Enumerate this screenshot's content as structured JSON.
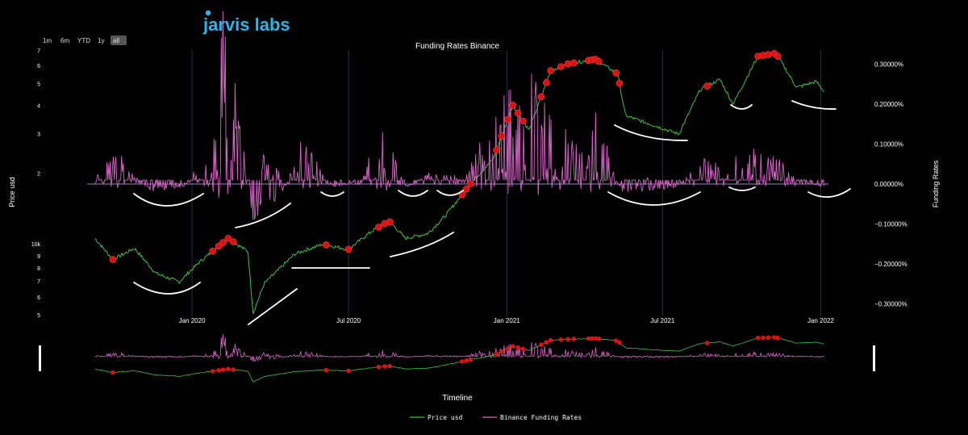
{
  "logo": {
    "text": "jarvis labs",
    "colors": [
      "#2bb5e8",
      "#7b4fd0"
    ]
  },
  "range_selector": {
    "buttons": [
      "1m",
      "6m",
      "YTD",
      "1y",
      "all"
    ],
    "active": "all"
  },
  "slider": {
    "title": "Timeline"
  },
  "colors": {
    "price": "#3ec43e",
    "funding": "#d864c8",
    "marker": "#dd1111",
    "annotation": "#ffffff",
    "grid": "#2e2e48",
    "zero_line": "#6f6f9a"
  },
  "chart_data": {
    "type": "line",
    "title": "Funding Rates Binance",
    "xlabel": "",
    "y_left_label": "Price usd",
    "y_right_label": "Funding Rates",
    "y_left_scale": "log",
    "y_left_ticks_upper": [
      "7",
      "6",
      "5",
      "4",
      "3",
      "2"
    ],
    "y_left_ticks_lower": [
      "10k",
      "9",
      "8",
      "7",
      "6",
      "5"
    ],
    "y_right_ticks": [
      "0.30000%",
      "0.20000%",
      "0.10000%",
      "0.00000%",
      "−0.10000%",
      "−0.20000%",
      "−0.30000%"
    ],
    "x_ticks": [
      "Jan 2020",
      "Jul 2020",
      "Jan 2021",
      "Jul 2021",
      "Jan 2022"
    ],
    "x_range": [
      "2019-09-01",
      "2022-01-10"
    ],
    "grid": true,
    "legend": {
      "position": "bottom-center",
      "entries": [
        "Price usd",
        "Binance Funding Rates"
      ]
    },
    "series": [
      {
        "name": "Price usd",
        "dates": [
          "2019-09-10",
          "2019-10-01",
          "2019-10-26",
          "2019-11-20",
          "2019-12-17",
          "2020-01-10",
          "2020-02-12",
          "2020-03-06",
          "2020-03-12",
          "2020-03-25",
          "2020-04-30",
          "2020-06-01",
          "2020-07-01",
          "2020-07-27",
          "2020-08-17",
          "2020-09-05",
          "2020-10-01",
          "2020-10-21",
          "2020-11-25",
          "2020-12-16",
          "2021-01-08",
          "2021-01-27",
          "2021-02-21",
          "2021-03-13",
          "2021-04-14",
          "2021-05-10",
          "2021-05-19",
          "2021-06-22",
          "2021-07-20",
          "2021-08-14",
          "2021-09-06",
          "2021-09-21",
          "2021-10-20",
          "2021-11-10",
          "2021-12-04",
          "2021-12-27",
          "2022-01-05"
        ],
        "values": [
          10300,
          8300,
          9300,
          7200,
          6600,
          8100,
          10300,
          9000,
          4800,
          6500,
          8800,
          9700,
          9200,
          11000,
          12300,
          10300,
          10800,
          12900,
          19000,
          23000,
          40000,
          31000,
          57000,
          61000,
          64000,
          55000,
          36000,
          32500,
          29800,
          47000,
          52000,
          40500,
          66000,
          68000,
          48000,
          51000,
          46000
        ]
      },
      {
        "name": "Binance Funding Rates",
        "dates": [
          "2019-09-10",
          "2019-10-05",
          "2019-11-15",
          "2019-12-20",
          "2020-01-20",
          "2020-02-10",
          "2020-03-01",
          "2020-03-12",
          "2020-04-10",
          "2020-05-10",
          "2020-06-15",
          "2020-07-15",
          "2020-08-10",
          "2020-09-05",
          "2020-10-05",
          "2020-11-10",
          "2020-12-10",
          "2021-01-08",
          "2021-01-25",
          "2021-02-20",
          "2021-03-20",
          "2021-04-14",
          "2021-05-15",
          "2021-06-15",
          "2021-07-15",
          "2021-08-15",
          "2021-09-05",
          "2021-10-15",
          "2021-11-10",
          "2021-12-10",
          "2022-01-05"
        ],
        "values": [
          0.01,
          0.05,
          -0.02,
          -0.01,
          0.05,
          0.3,
          0.06,
          -0.1,
          -0.04,
          0.08,
          -0.01,
          0.01,
          0.1,
          -0.01,
          0.02,
          0.01,
          0.09,
          0.15,
          0.18,
          0.12,
          0.06,
          0.11,
          -0.02,
          -0.02,
          -0.01,
          0.04,
          0.03,
          0.05,
          0.04,
          0.01,
          -0.01
        ]
      }
    ],
    "markers_series": "Price usd",
    "marker_dates": [
      "2019-10-01",
      "2020-01-25",
      "2020-02-01",
      "2020-02-06",
      "2020-02-12",
      "2020-02-18",
      "2020-06-05",
      "2020-07-01",
      "2020-08-05",
      "2020-08-12",
      "2020-08-18",
      "2020-11-10",
      "2020-11-15",
      "2020-11-20",
      "2020-12-20",
      "2020-12-26",
      "2021-01-02",
      "2021-01-08",
      "2021-01-14",
      "2021-01-20",
      "2021-02-10",
      "2021-02-16",
      "2021-02-21",
      "2021-03-05",
      "2021-03-13",
      "2021-03-20",
      "2021-04-06",
      "2021-04-10",
      "2021-04-14",
      "2021-04-18",
      "2021-05-08",
      "2021-05-12",
      "2021-08-22",
      "2021-10-20",
      "2021-10-26",
      "2021-11-01",
      "2021-11-08",
      "2021-11-12"
    ],
    "annotations": {
      "type": "hand-drawn arcs and lines",
      "color": "#ffffff"
    }
  }
}
